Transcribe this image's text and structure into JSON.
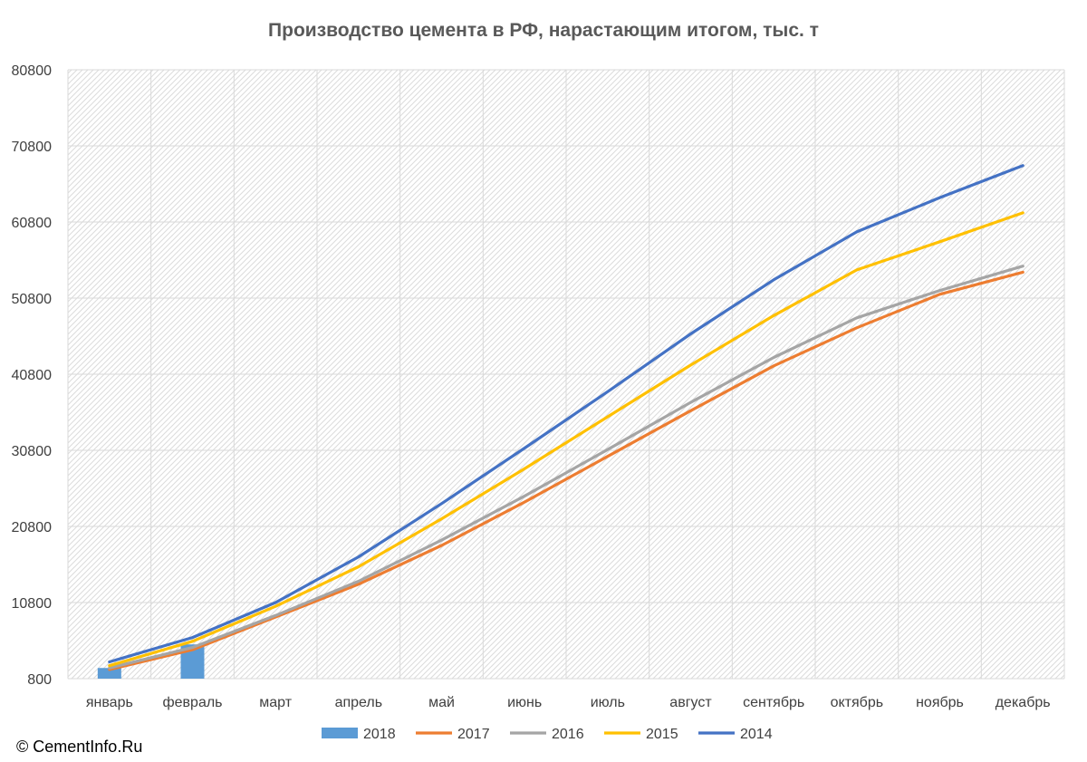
{
  "chart_data": {
    "type": "line",
    "title": "Производство цемента в РФ, нарастающим итогом, тыс. т",
    "xlabel": "",
    "ylabel": "",
    "categories": [
      "январь",
      "февраль",
      "март",
      "апрель",
      "май",
      "июнь",
      "июль",
      "август",
      "сентябрь",
      "октябрь",
      "ноябрь",
      "декабрь"
    ],
    "ylim": [
      800,
      80800
    ],
    "yticks": [
      800,
      10800,
      20800,
      30800,
      40800,
      50800,
      60800,
      70800,
      80800
    ],
    "grid": true,
    "legend_position": "bottom",
    "series": [
      {
        "name": "2018",
        "type": "bar",
        "color": "#5B9BD5",
        "values": [
          2200,
          5300,
          null,
          null,
          null,
          null,
          null,
          null,
          null,
          null,
          null,
          null
        ]
      },
      {
        "name": "2017",
        "type": "line",
        "color": "#ED7D31",
        "values": [
          2000,
          4600,
          8900,
          13200,
          18300,
          24000,
          30000,
          36000,
          41900,
          46900,
          51300,
          54200
        ]
      },
      {
        "name": "2016",
        "type": "line",
        "color": "#A5A5A5",
        "values": [
          2200,
          4900,
          9100,
          13600,
          19000,
          24800,
          30900,
          37100,
          43000,
          48200,
          51800,
          55000
        ]
      },
      {
        "name": "2015",
        "type": "line",
        "color": "#FFC000",
        "values": [
          2500,
          5700,
          10300,
          15500,
          21800,
          28400,
          35200,
          42000,
          48500,
          54500,
          58200,
          62000
        ]
      },
      {
        "name": "2014",
        "type": "line",
        "color": "#4472C4",
        "values": [
          3000,
          6200,
          10800,
          16800,
          23800,
          31100,
          38500,
          46100,
          53200,
          59500,
          64000,
          68200
        ]
      }
    ]
  },
  "copyright": "© CementInfo.Ru"
}
